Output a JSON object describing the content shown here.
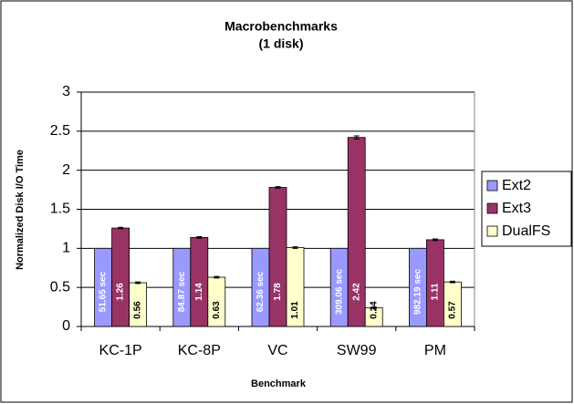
{
  "chart_data": {
    "type": "bar",
    "title": "Macrobenchmarks",
    "subtitle": "(1 disk)",
    "x_label": "Benchmark",
    "y_label": "Normalized Disk I/O Time",
    "categories": [
      "KC-1P",
      "KC-8P",
      "VC",
      "SW99",
      "PM"
    ],
    "series": [
      {
        "name": "Ext2",
        "color": "#9999ff",
        "values": [
          1,
          1,
          1,
          1,
          1
        ],
        "annotations": [
          "51.65 sec",
          "84.87 sec",
          "62.36 sec",
          "309.06 sec",
          "982.19 sec"
        ]
      },
      {
        "name": "Ext3",
        "color": "#993366",
        "values": [
          1.26,
          1.14,
          1.78,
          2.42,
          1.11
        ],
        "errors": [
          0.01,
          0.01,
          0.01,
          0.02,
          0.01
        ]
      },
      {
        "name": "DualFS",
        "color": "#ffffcc",
        "values": [
          0.56,
          0.63,
          1.01,
          0.24,
          0.57
        ],
        "errors": [
          0.01,
          0.01,
          0.01,
          0.01,
          0.01
        ]
      }
    ],
    "ylim": [
      0,
      3
    ],
    "yticks": [
      0,
      0.5,
      1,
      1.5,
      2,
      2.5,
      3
    ],
    "grid": true,
    "legend": "right"
  }
}
